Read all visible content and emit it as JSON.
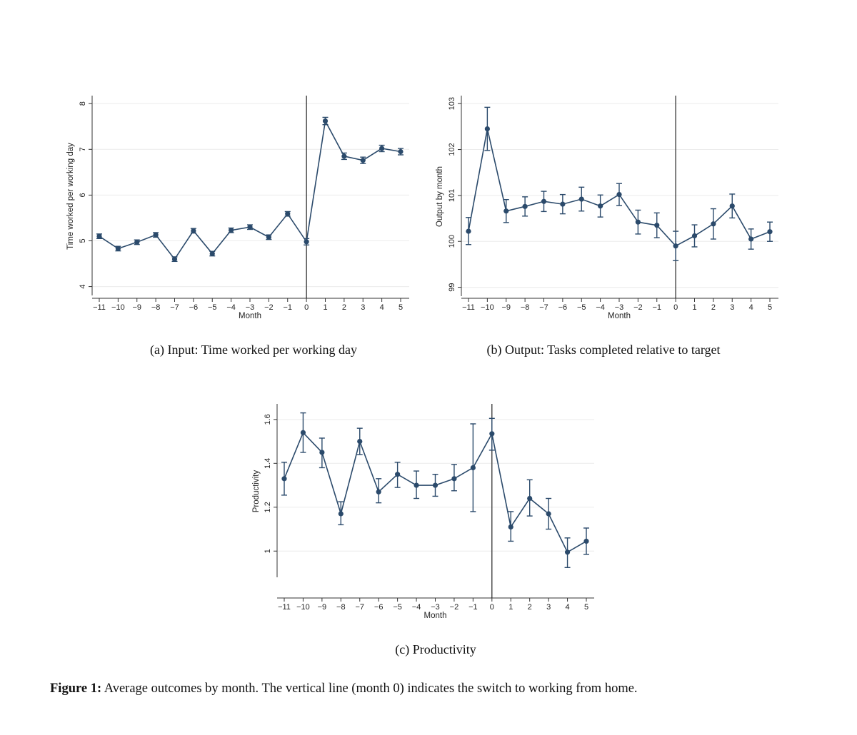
{
  "chart_data": [
    {
      "type": "line",
      "caption": "(a) Input: Time worked per working day",
      "xlabel": "Month",
      "ylabel": "Time worked per working day",
      "x": [
        -11,
        -10,
        -9,
        -8,
        -7,
        -6,
        -5,
        -4,
        -3,
        -2,
        -1,
        0,
        1,
        2,
        3,
        4,
        5
      ],
      "x_tick_labels": [
        "−11",
        "−10",
        "−9",
        "−8",
        "−7",
        "−6",
        "−5",
        "−4",
        "−3",
        "−2",
        "−1",
        "0",
        "1",
        "2",
        "3",
        "4",
        "5"
      ],
      "y": [
        5.1,
        4.83,
        4.97,
        5.13,
        4.6,
        5.22,
        4.72,
        5.23,
        5.3,
        5.08,
        5.59,
        4.98,
        7.62,
        6.85,
        6.76,
        7.02,
        6.95
      ],
      "ci_low": [
        5.05,
        4.78,
        4.92,
        5.08,
        4.55,
        5.17,
        4.67,
        5.18,
        5.25,
        5.03,
        5.54,
        4.91,
        7.54,
        6.78,
        6.69,
        6.95,
        6.88
      ],
      "ci_high": [
        5.15,
        4.88,
        5.02,
        5.18,
        4.65,
        5.27,
        4.77,
        5.28,
        5.35,
        5.13,
        5.64,
        5.05,
        7.7,
        6.92,
        6.83,
        7.09,
        7.02
      ],
      "ylim": [
        3.9,
        8.05
      ],
      "y_ticks": [
        4,
        5,
        6,
        7,
        8
      ],
      "y_tick_labels": [
        "4",
        "5",
        "6",
        "7",
        "8"
      ],
      "vline_x": 0,
      "grid": true,
      "color": "#2b4a6b"
    },
    {
      "type": "line",
      "caption": "(b) Output: Tasks completed relative to target",
      "xlabel": "Month",
      "ylabel": "Output by month",
      "x": [
        -11,
        -10,
        -9,
        -8,
        -7,
        -6,
        -5,
        -4,
        -3,
        -2,
        -1,
        0,
        1,
        2,
        3,
        4,
        5
      ],
      "x_tick_labels": [
        "−11",
        "−10",
        "−9",
        "−8",
        "−7",
        "−6",
        "−5",
        "−4",
        "−3",
        "−2",
        "−1",
        "0",
        "1",
        "2",
        "3",
        "4",
        "5"
      ],
      "y": [
        100.22,
        102.45,
        100.66,
        100.76,
        100.87,
        100.81,
        100.92,
        100.77,
        101.02,
        100.42,
        100.35,
        99.9,
        100.12,
        100.38,
        100.77,
        100.05,
        100.21
      ],
      "ci_low": [
        99.93,
        101.98,
        100.41,
        100.55,
        100.65,
        100.6,
        100.66,
        100.53,
        100.78,
        100.16,
        100.08,
        99.58,
        99.88,
        100.05,
        100.51,
        99.83,
        100.0
      ],
      "ci_high": [
        100.52,
        102.92,
        100.91,
        100.97,
        101.09,
        101.02,
        101.18,
        101.01,
        101.26,
        100.68,
        100.62,
        100.22,
        100.36,
        100.71,
        101.03,
        100.27,
        100.42
      ],
      "ylim": [
        98.9,
        103.05
      ],
      "y_ticks": [
        99,
        100,
        101,
        102,
        103
      ],
      "y_tick_labels": [
        "99",
        "100",
        "101",
        "102",
        "103"
      ],
      "vline_x": 0,
      "grid": true,
      "color": "#2b4a6b"
    },
    {
      "type": "line",
      "caption": "(c) Productivity",
      "xlabel": "Month",
      "ylabel": "Productivity",
      "x": [
        -11,
        -10,
        -9,
        -8,
        -7,
        -6,
        -5,
        -4,
        -3,
        -2,
        -1,
        0,
        1,
        2,
        3,
        4,
        5
      ],
      "x_tick_labels": [
        "−11",
        "−10",
        "−9",
        "−8",
        "−7",
        "−6",
        "−5",
        "−4",
        "−3",
        "−2",
        "−1",
        "0",
        "1",
        "2",
        "3",
        "4",
        "5"
      ],
      "y": [
        1.33,
        1.54,
        1.45,
        1.17,
        1.5,
        1.27,
        1.35,
        1.3,
        1.3,
        1.33,
        1.38,
        1.535,
        1.11,
        1.24,
        1.17,
        0.995,
        1.045
      ],
      "ci_low": [
        1.255,
        1.45,
        1.38,
        1.12,
        1.44,
        1.22,
        1.29,
        1.24,
        1.25,
        1.275,
        1.18,
        1.46,
        1.045,
        1.16,
        1.1,
        0.925,
        0.985
      ],
      "ci_high": [
        1.405,
        1.63,
        1.515,
        1.225,
        1.56,
        1.33,
        1.405,
        1.365,
        1.35,
        1.395,
        1.58,
        1.605,
        1.18,
        1.325,
        1.24,
        1.06,
        1.105
      ],
      "ylim": [
        0.9,
        1.645
      ],
      "y_ticks": [
        1,
        1.2,
        1.4,
        1.6
      ],
      "y_tick_labels": [
        "1",
        "1.2",
        "1.4",
        "1.6"
      ],
      "vline_x": 0,
      "grid": true,
      "color": "#2b4a6b"
    }
  ],
  "figure_caption": {
    "label": "Figure 1:",
    "text": " Average outcomes by month. The vertical line (month 0) indicates the switch to working from home."
  }
}
